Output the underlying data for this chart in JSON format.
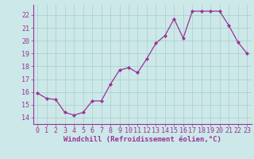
{
  "x": [
    0,
    1,
    2,
    3,
    4,
    5,
    6,
    7,
    8,
    9,
    10,
    11,
    12,
    13,
    14,
    15,
    16,
    17,
    18,
    19,
    20,
    21,
    22,
    23
  ],
  "y": [
    15.9,
    15.5,
    15.4,
    14.4,
    14.2,
    14.4,
    15.3,
    15.3,
    16.6,
    17.7,
    17.9,
    17.5,
    18.6,
    19.8,
    20.4,
    21.7,
    20.2,
    22.3,
    22.3,
    22.3,
    22.3,
    21.2,
    19.9,
    19.0
  ],
  "line_color": "#993399",
  "marker": "D",
  "marker_size": 2,
  "bg_color": "#cce8e8",
  "grid_color": "#aacccc",
  "xlabel": "Windchill (Refroidissement éolien,°C)",
  "xlabel_color": "#993399",
  "tick_color": "#993399",
  "label_color": "#993399",
  "ylim": [
    13.5,
    22.8
  ],
  "yticks": [
    14,
    15,
    16,
    17,
    18,
    19,
    20,
    21,
    22
  ],
  "xlim": [
    -0.5,
    23.5
  ],
  "xticks": [
    0,
    1,
    2,
    3,
    4,
    5,
    6,
    7,
    8,
    9,
    10,
    11,
    12,
    13,
    14,
    15,
    16,
    17,
    18,
    19,
    20,
    21,
    22,
    23
  ],
  "tick_fontsize": 6,
  "xlabel_fontsize": 6.5
}
